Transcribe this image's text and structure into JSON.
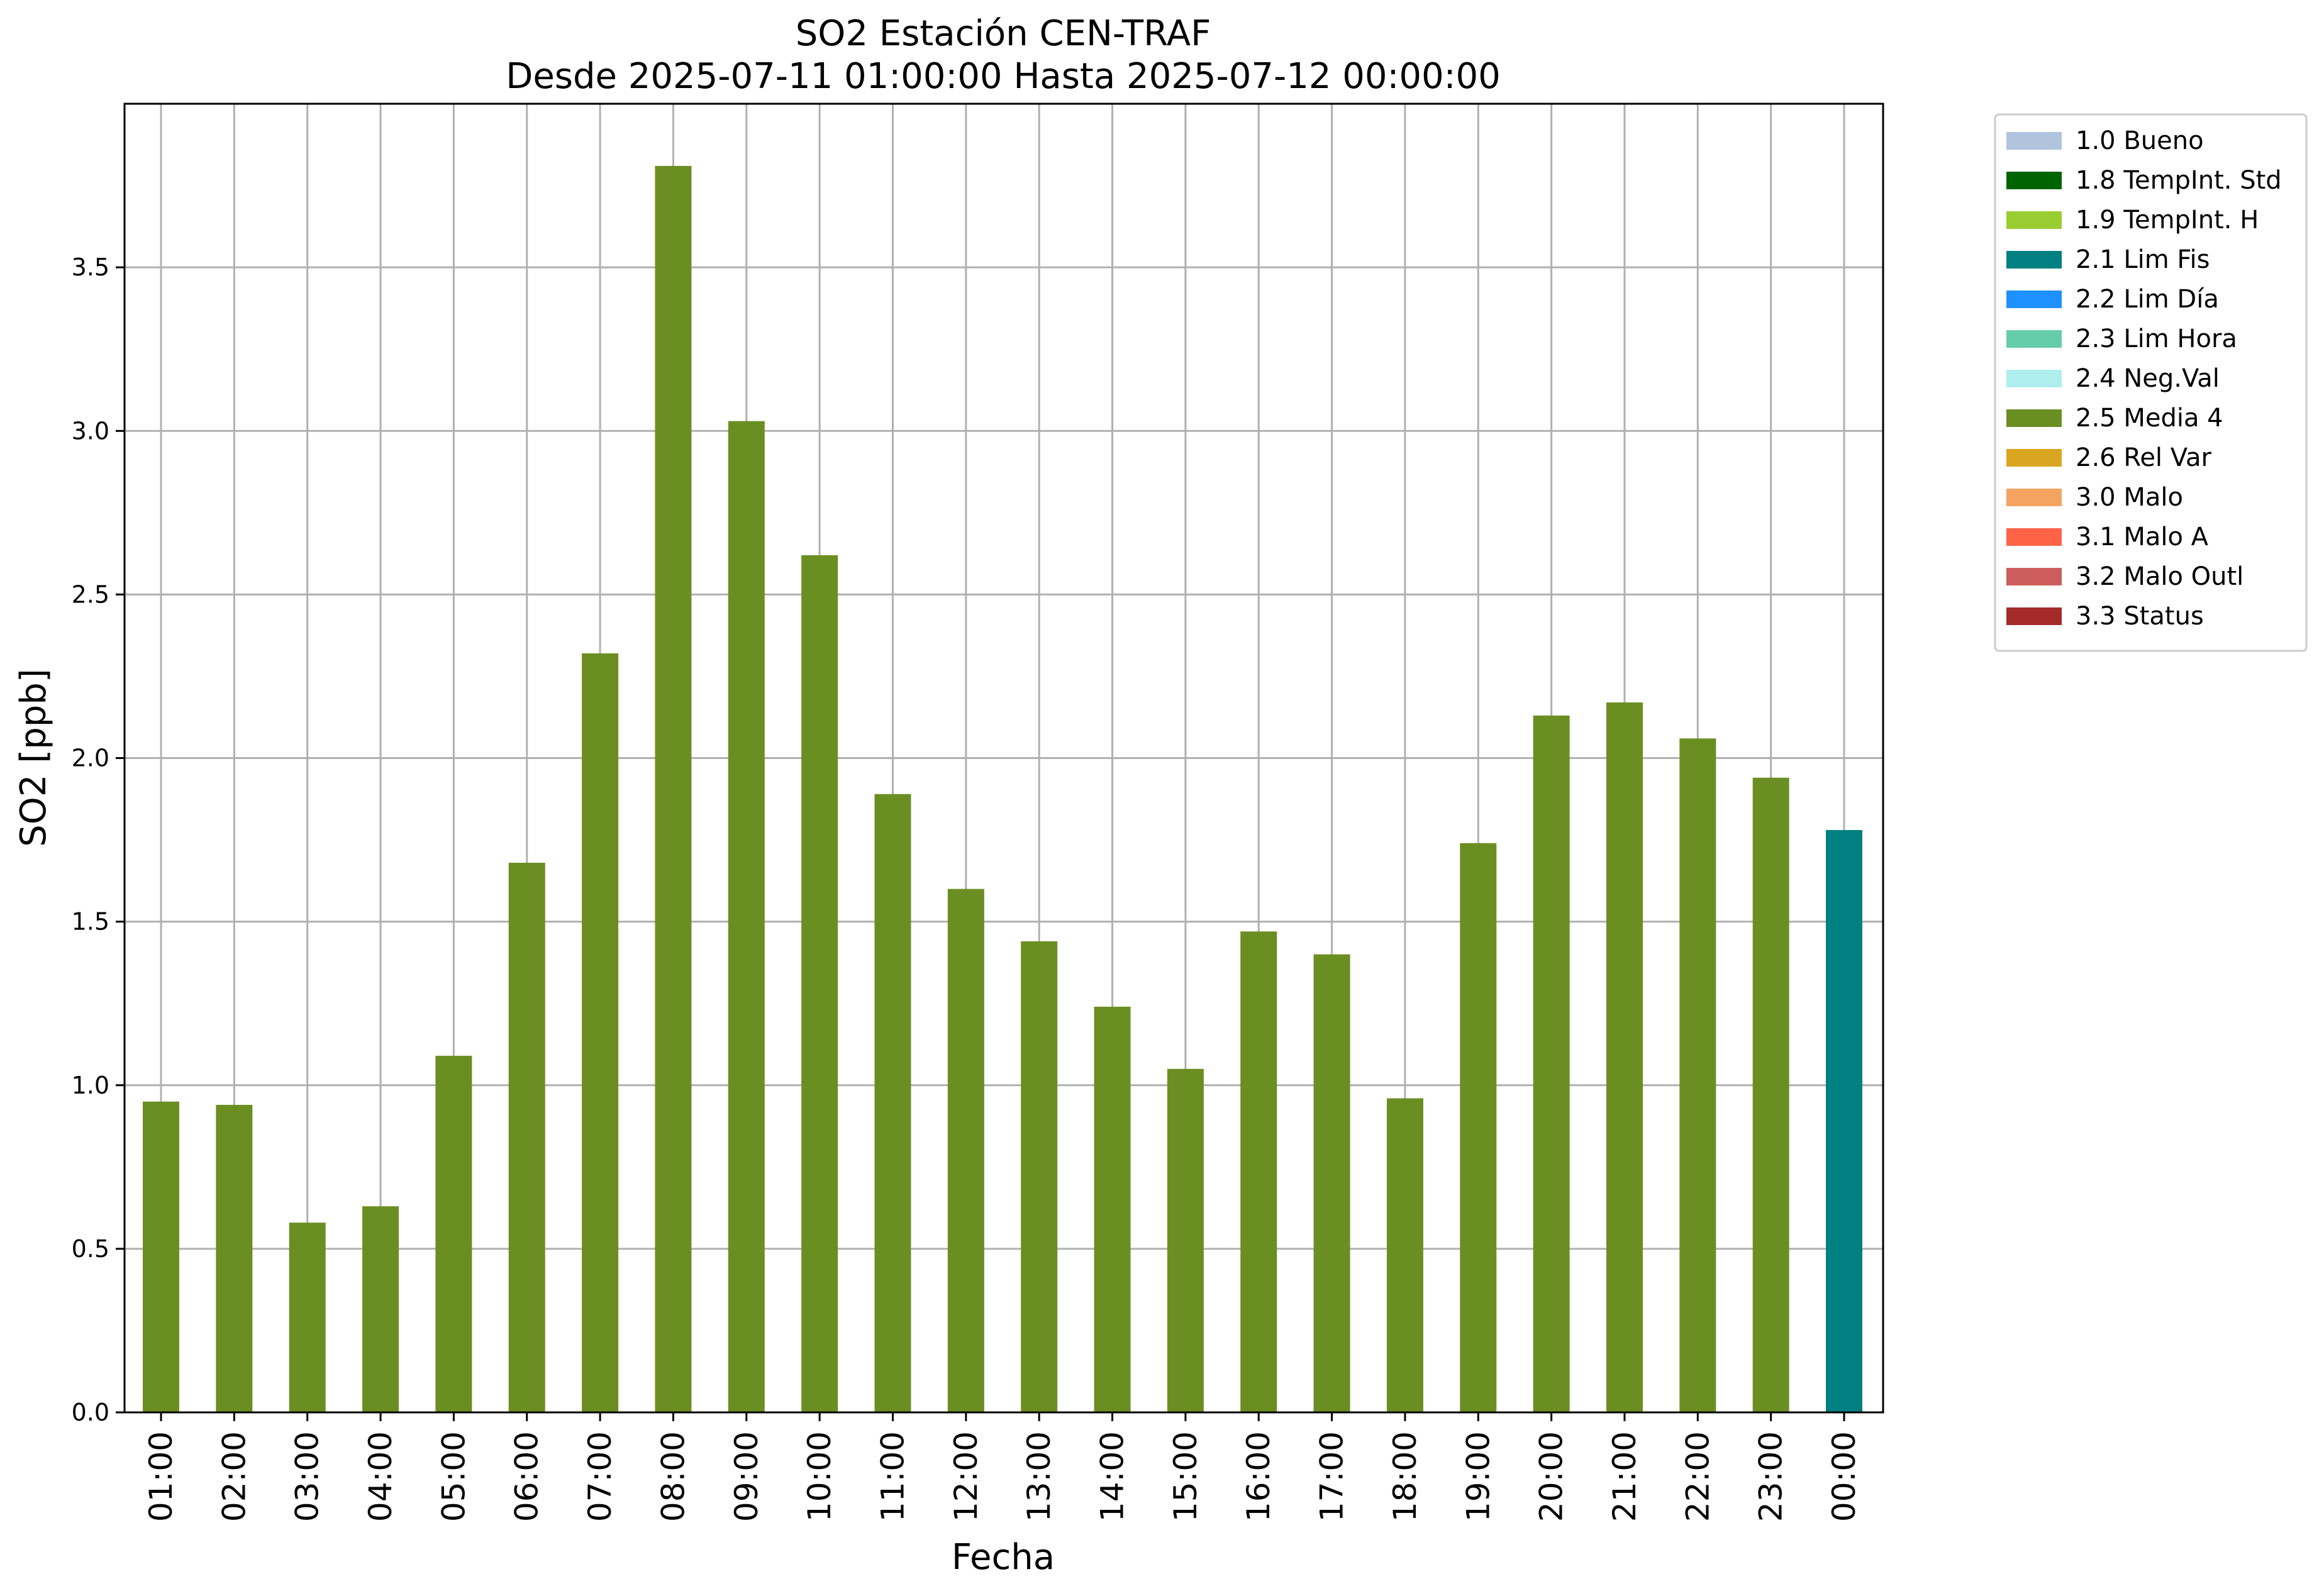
{
  "chart_data": {
    "type": "bar",
    "title": "SO2 Estación CEN-TRAF",
    "subtitle": "Desde 2025-07-11 01:00:00 Hasta 2025-07-12 00:00:00",
    "xlabel": "Fecha",
    "ylabel": "SO2 [ppb]",
    "ylim": [
      0,
      4.0
    ],
    "yticks": [
      "0.0",
      "0.5",
      "1.0",
      "1.5",
      "2.0",
      "2.5",
      "3.0",
      "3.5"
    ],
    "grid": true,
    "legend_position": "outside top-right",
    "categories": [
      "01:00",
      "02:00",
      "03:00",
      "04:00",
      "05:00",
      "06:00",
      "07:00",
      "08:00",
      "09:00",
      "10:00",
      "11:00",
      "12:00",
      "13:00",
      "14:00",
      "15:00",
      "16:00",
      "17:00",
      "18:00",
      "19:00",
      "20:00",
      "21:00",
      "22:00",
      "23:00",
      "00:00"
    ],
    "values": [
      0.95,
      0.94,
      0.58,
      0.63,
      1.09,
      1.68,
      2.32,
      3.81,
      3.03,
      2.62,
      1.89,
      1.6,
      1.44,
      1.24,
      1.05,
      1.47,
      1.4,
      0.96,
      1.74,
      2.13,
      2.17,
      2.06,
      1.94,
      1.78
    ],
    "flags": [
      "2.5 Media 4",
      "2.5 Media 4",
      "2.5 Media 4",
      "2.5 Media 4",
      "2.5 Media 4",
      "2.5 Media 4",
      "2.5 Media 4",
      "2.5 Media 4",
      "2.5 Media 4",
      "2.5 Media 4",
      "2.5 Media 4",
      "2.5 Media 4",
      "2.5 Media 4",
      "2.5 Media 4",
      "2.5 Media 4",
      "2.5 Media 4",
      "2.5 Media 4",
      "2.5 Media 4",
      "2.5 Media 4",
      "2.5 Media 4",
      "2.5 Media 4",
      "2.5 Media 4",
      "2.5 Media 4",
      "2.1 Lim Fis"
    ],
    "legend": [
      {
        "label": "1.0 Bueno",
        "color": "#b0c4de"
      },
      {
        "label": "1.8 TempInt. Std",
        "color": "#006400"
      },
      {
        "label": "1.9 TempInt. H",
        "color": "#9acd32"
      },
      {
        "label": "2.1 Lim Fis",
        "color": "#008080"
      },
      {
        "label": "2.2 Lim Día",
        "color": "#1e90ff"
      },
      {
        "label": "2.3 Lim Hora",
        "color": "#66cdaa"
      },
      {
        "label": "2.4 Neg.Val",
        "color": "#afeeee"
      },
      {
        "label": "2.5 Media 4",
        "color": "#6b8e23"
      },
      {
        "label": "2.6 Rel Var",
        "color": "#daa520"
      },
      {
        "label": "3.0 Malo",
        "color": "#f4a460"
      },
      {
        "label": "3.1 Malo A",
        "color": "#ff6347"
      },
      {
        "label": "3.2 Malo Outl",
        "color": "#cd5c5c"
      },
      {
        "label": "3.3 Status",
        "color": "#a52a2a"
      }
    ]
  }
}
